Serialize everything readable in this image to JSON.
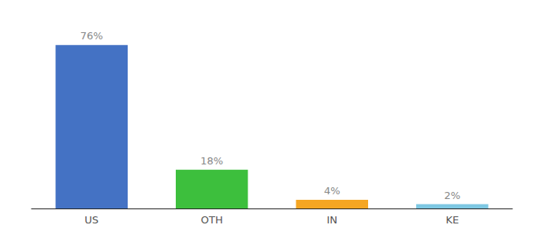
{
  "chart_data": {
    "type": "bar",
    "categories": [
      "US",
      "OTH",
      "IN",
      "KE"
    ],
    "values": [
      76,
      18,
      4,
      2
    ],
    "value_labels": [
      "76%",
      "18%",
      "4%",
      "2%"
    ],
    "colors": [
      "#4472c4",
      "#3dbf3d",
      "#f5a623",
      "#7ec8e3"
    ],
    "ylim": [
      0,
      86
    ],
    "data_labels": true,
    "grid": false,
    "tick_labels": "x"
  }
}
